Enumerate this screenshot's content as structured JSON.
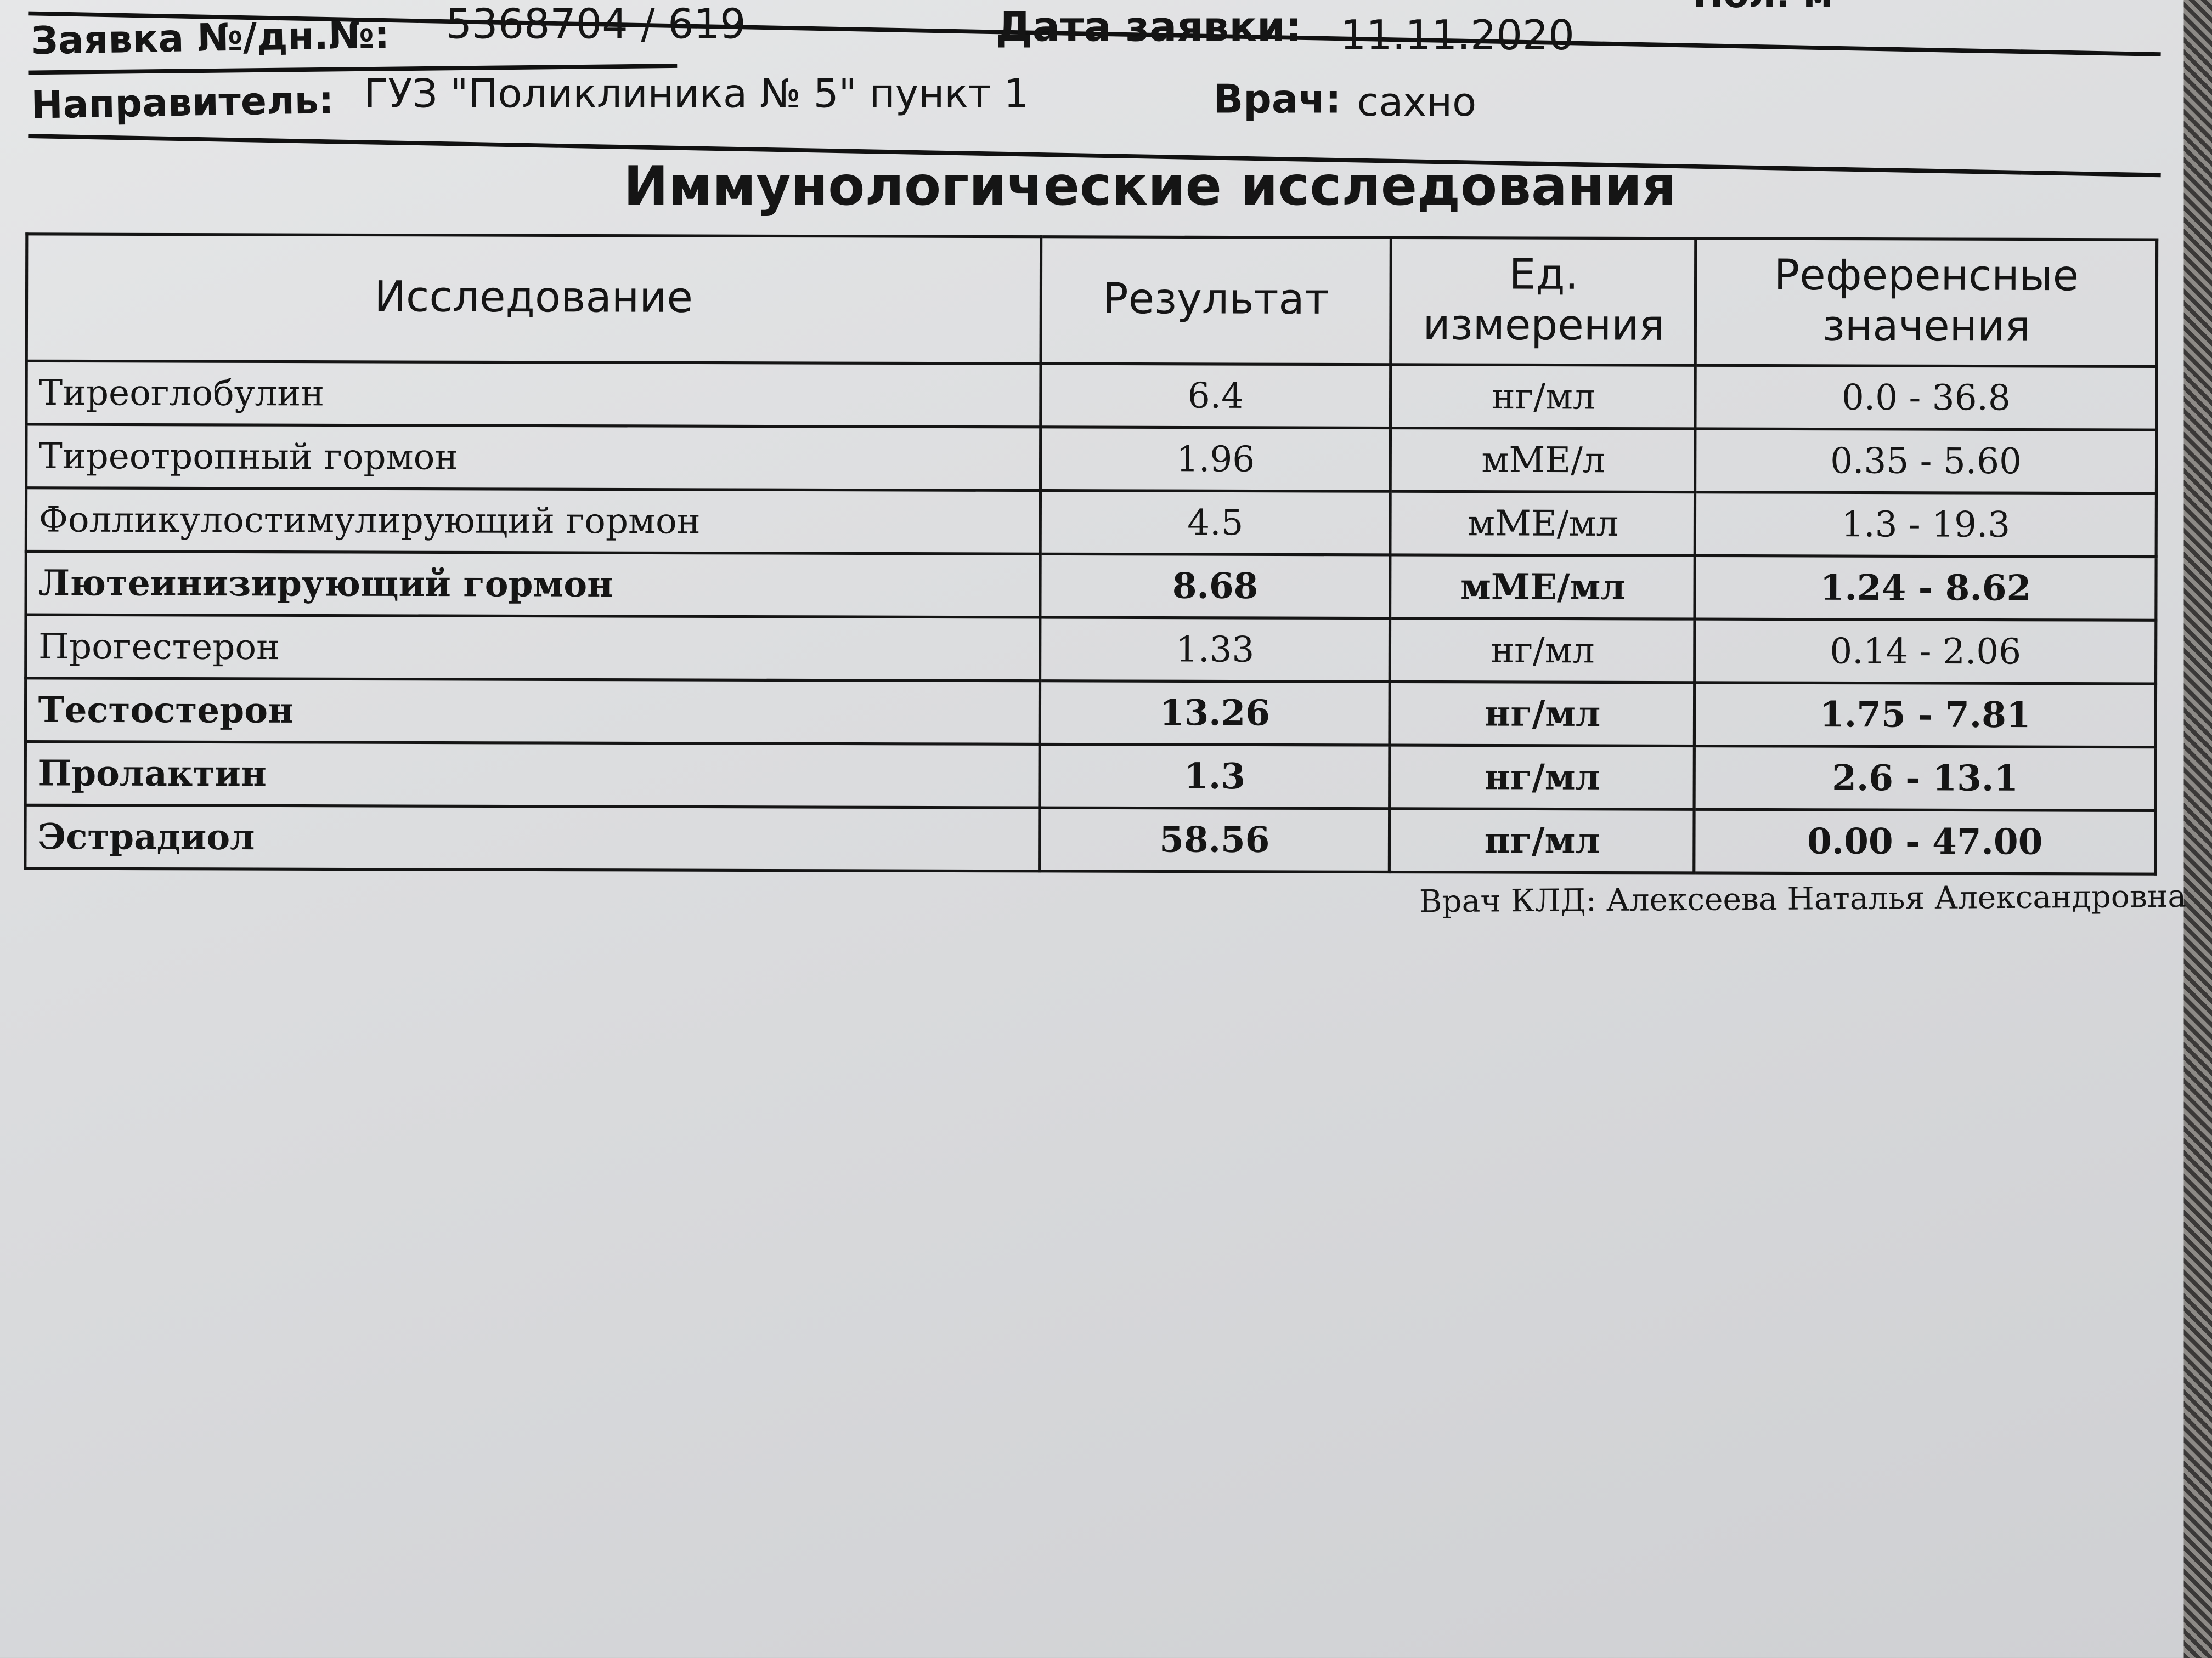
{
  "header": {
    "top_fragment": "Пол: м",
    "order_label": "Заявка №/дн.№:",
    "order_value": "5368704 / 619",
    "date_label": "Дата заявки:",
    "date_value": "11.11.2020",
    "referrer_label": "Направитель:",
    "referrer_value": "ГУЗ \"Поликлиника № 5\" пункт 1",
    "doctor_label": "Врач:",
    "doctor_value": "сахно"
  },
  "section_title": "Иммунологические исследования",
  "table": {
    "columns": [
      "Исследование",
      "Результат",
      "Ед. измерения",
      "Референсные значения"
    ],
    "rows": [
      {
        "name": "Тиреоглобулин",
        "result": "6.4",
        "unit": "нг/мл",
        "ref": "0.0 - 36.8",
        "flagged": false
      },
      {
        "name": "Тиреотропный гормон",
        "result": "1.96",
        "unit": "мМЕ/л",
        "ref": "0.35 - 5.60",
        "flagged": false
      },
      {
        "name": "Фолликулостимулирующий гормон",
        "result": "4.5",
        "unit": "мМЕ/мл",
        "ref": "1.3 - 19.3",
        "flagged": false
      },
      {
        "name": "Лютеинизирующий гормон",
        "result": "8.68",
        "unit": "мМЕ/мл",
        "ref": "1.24 - 8.62",
        "flagged": true
      },
      {
        "name": "Прогестерон",
        "result": "1.33",
        "unit": "нг/мл",
        "ref": "0.14 - 2.06",
        "flagged": false
      },
      {
        "name": "Тестостерон",
        "result": "13.26",
        "unit": "нг/мл",
        "ref": "1.75 - 7.81",
        "flagged": true
      },
      {
        "name": "Пролактин",
        "result": "1.3",
        "unit": "нг/мл",
        "ref": "2.6 - 13.1",
        "flagged": true
      },
      {
        "name": "Эстрадиол",
        "result": "58.56",
        "unit": "пг/мл",
        "ref": "0.00 - 47.00",
        "flagged": true
      }
    ]
  },
  "signature": "Врач КЛД: Алексеева Наталья Александровна"
}
